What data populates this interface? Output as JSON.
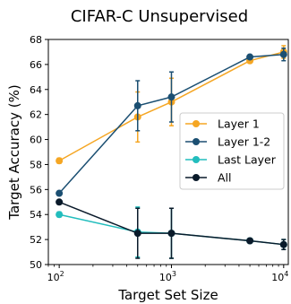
{
  "chart_data": {
    "type": "line",
    "title": "CIFAR-C Unsupervised",
    "xlabel": "Target Set Size",
    "ylabel": "Target Accuracy (%)",
    "x_scale": "log",
    "xlim": [
      80,
      11000
    ],
    "ylim": [
      50,
      68
    ],
    "x_ticks": [
      {
        "value": 100,
        "base": "10",
        "exp": "2"
      },
      {
        "value": 1000,
        "base": "10",
        "exp": "3"
      },
      {
        "value": 10000,
        "base": "10",
        "exp": "4"
      }
    ],
    "y_ticks": [
      "50",
      "52",
      "54",
      "56",
      "58",
      "60",
      "62",
      "64",
      "66",
      "68"
    ],
    "x": [
      100,
      500,
      1000,
      5000,
      10000
    ],
    "legend_position": "center-right",
    "series": [
      {
        "name": "Layer 1",
        "color": "#f5a623",
        "values": [
          58.3,
          61.8,
          63.0,
          66.3,
          67.0
        ],
        "errors": [
          0.2,
          2.0,
          1.9,
          0.2,
          0.5
        ]
      },
      {
        "name": "Layer 1-2",
        "color": "#1b4f72",
        "values": [
          55.7,
          62.7,
          63.4,
          66.6,
          66.8
        ],
        "errors": [
          0.1,
          2.0,
          2.0,
          0.1,
          0.5
        ]
      },
      {
        "name": "Last Layer",
        "color": "#22bdbd",
        "values": [
          54.0,
          52.6,
          52.5,
          51.9,
          51.6
        ],
        "errors": [
          0.2,
          2.0,
          2.0,
          0.1,
          0.4
        ]
      },
      {
        "name": "All",
        "color": "#0a1a2a",
        "values": [
          55.0,
          52.5,
          52.5,
          51.9,
          51.6
        ],
        "errors": [
          0.1,
          2.0,
          2.0,
          0.1,
          0.4
        ]
      }
    ]
  }
}
